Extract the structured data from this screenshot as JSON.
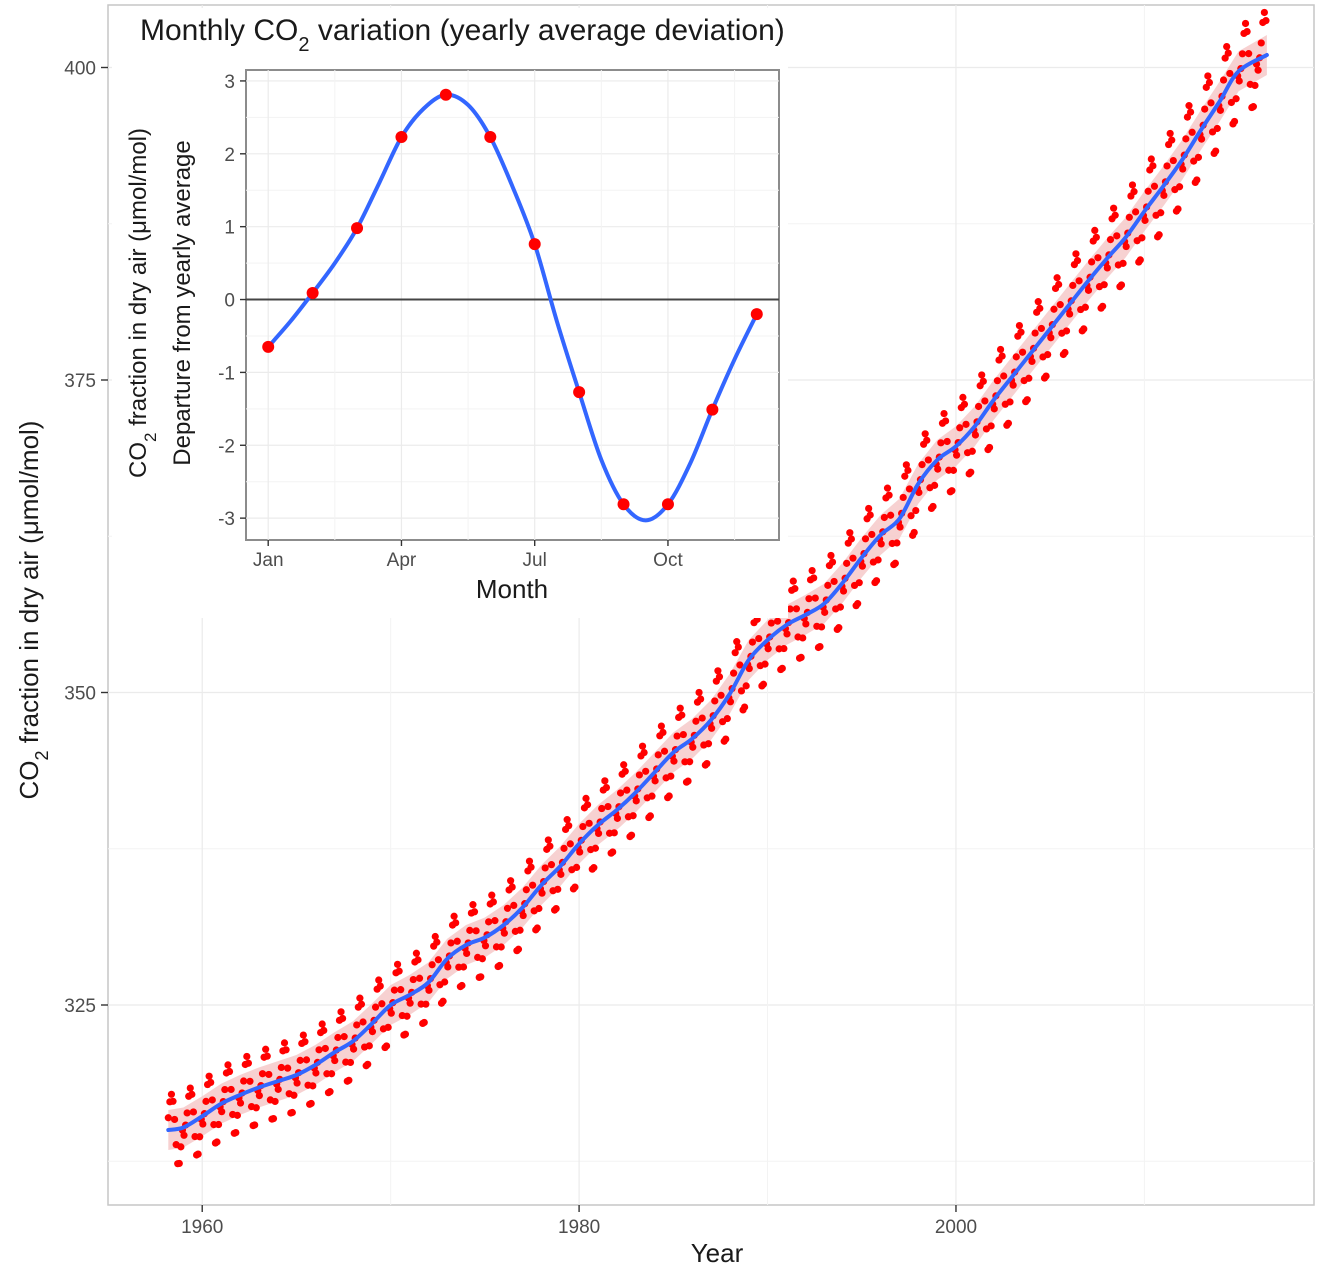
{
  "chart_data": [
    {
      "type": "line",
      "role": "main",
      "xlabel": "Year",
      "ylabel": {
        "pre": "CO",
        "sub": "2",
        "post": " fraction in dry air (μmol/mol)"
      },
      "xlim": [
        1955,
        2019
      ],
      "ylim": [
        309,
        405
      ],
      "xticks": [
        1960,
        1980,
        2000
      ],
      "yticks": [
        325,
        350,
        375,
        400
      ],
      "grid": true,
      "series": [
        {
          "kind": "points",
          "color": "#ff0000",
          "description_of_markers": "monthly observations (every month, seasonal cycle added to trend)",
          "x_start": 1958.2,
          "x_end": 2016.5,
          "seasonal_amplitude_source": "inset"
        },
        {
          "kind": "smooth",
          "color": "#3366ff",
          "ribbon_color": "#f5c6c6",
          "x": [
            1958.2,
            1959,
            1960,
            1961,
            1962,
            1963,
            1964,
            1965,
            1966,
            1967,
            1968,
            1969,
            1970,
            1971,
            1972,
            1973,
            1974,
            1975,
            1976,
            1977,
            1978,
            1979,
            1980,
            1981,
            1982,
            1983,
            1984,
            1985,
            1986,
            1987,
            1988,
            1989,
            1990,
            1991,
            1992,
            1993,
            1994,
            1995,
            1996,
            1997,
            1998,
            1999,
            2000,
            2001,
            2002,
            2003,
            2004,
            2005,
            2006,
            2007,
            2008,
            2009,
            2010,
            2011,
            2012,
            2013,
            2014,
            2015,
            2016.5
          ],
          "y": [
            315.0,
            315.2,
            316.1,
            317.1,
            317.8,
            318.4,
            318.9,
            319.4,
            320.2,
            321.2,
            322.1,
            323.5,
            325.0,
            325.8,
            326.8,
            328.7,
            329.8,
            330.4,
            331.4,
            332.8,
            334.6,
            336.1,
            337.9,
            339.4,
            340.6,
            342.0,
            343.6,
            345.2,
            346.3,
            347.8,
            349.9,
            352.6,
            354.2,
            355.4,
            356.2,
            357.1,
            358.8,
            360.8,
            362.6,
            363.9,
            366.7,
            368.6,
            369.7,
            371.3,
            373.4,
            375.3,
            377.2,
            379.1,
            381.0,
            382.9,
            384.7,
            386.4,
            388.5,
            390.5,
            392.6,
            395.0,
            397.3,
            399.7,
            401.0
          ]
        }
      ]
    },
    {
      "type": "line",
      "role": "inset",
      "title": {
        "pre": "Monthly CO",
        "sub": "2",
        "post": " variation (yearly average deviation)"
      },
      "xlabel": "Month",
      "ylabel_line1": {
        "pre": "CO",
        "sub": "2",
        "post": " fraction in dry air (μmol/mol)"
      },
      "ylabel_line2": "Departure from yearly average",
      "xlim": [
        0.5,
        12.5
      ],
      "ylim": [
        -3.3,
        3.15
      ],
      "xticks": [
        {
          "pos": 1,
          "label": "Jan"
        },
        {
          "pos": 4,
          "label": "Apr"
        },
        {
          "pos": 7,
          "label": "Jul"
        },
        {
          "pos": 10,
          "label": "Oct"
        }
      ],
      "yticks": [
        -3,
        -2,
        -1,
        0,
        1,
        2,
        3
      ],
      "grid": true,
      "zero_line": true,
      "series": [
        {
          "name": "monthly means",
          "kind": "points",
          "color": "#ff0000",
          "x": [
            1,
            2,
            3,
            4,
            5,
            6,
            7,
            8,
            9,
            10,
            11,
            12
          ],
          "y": [
            -0.65,
            0.09,
            0.98,
            2.23,
            2.81,
            2.23,
            0.76,
            -1.27,
            -2.81,
            -2.81,
            -1.51,
            -0.2
          ]
        },
        {
          "name": "smooth",
          "kind": "smooth",
          "color": "#3366ff",
          "x": [
            1,
            1.5,
            2,
            2.5,
            3,
            3.5,
            4,
            4.5,
            5,
            5.5,
            6,
            6.5,
            7,
            7.5,
            8,
            8.5,
            9,
            9.5,
            10,
            10.5,
            11,
            11.5,
            12
          ],
          "y": [
            -0.65,
            -0.3,
            0.09,
            0.5,
            0.98,
            1.6,
            2.23,
            2.62,
            2.81,
            2.67,
            2.23,
            1.55,
            0.76,
            -0.3,
            -1.27,
            -2.2,
            -2.81,
            -3.03,
            -2.81,
            -2.25,
            -1.51,
            -0.82,
            -0.2
          ]
        }
      ]
    }
  ]
}
